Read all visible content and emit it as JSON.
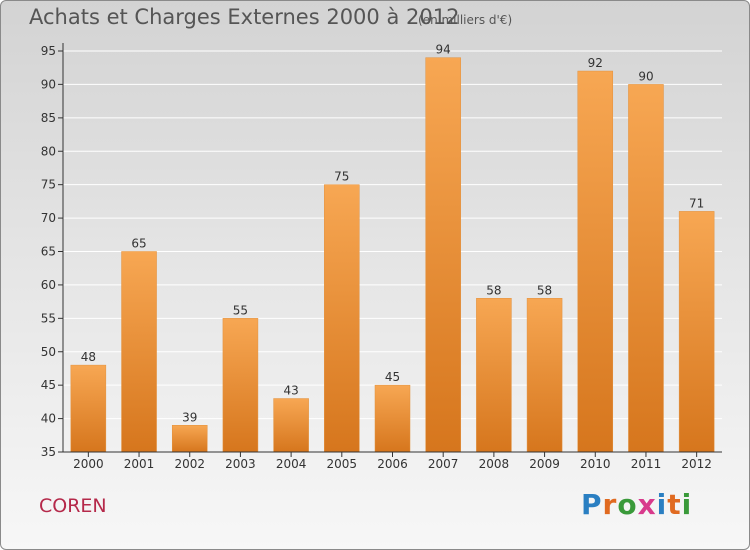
{
  "title": "Achats et Charges Externes 2000 à 2012",
  "subtitle": "(en milliers d'€)",
  "commune": "COREN",
  "logo": {
    "text": "Proxiti",
    "letters": [
      {
        "ch": "P",
        "color": "#2a7fc2"
      },
      {
        "ch": "r",
        "color": "#e06a20"
      },
      {
        "ch": "o",
        "color": "#3a9a3a"
      },
      {
        "ch": "x",
        "color": "#d83a8c"
      },
      {
        "ch": "i",
        "color": "#2a7fc2"
      },
      {
        "ch": "t",
        "color": "#e06a20"
      },
      {
        "ch": "i",
        "color": "#3a9a3a"
      }
    ]
  },
  "colors": {
    "bar_light": "#f7a753",
    "bar_dark": "#d6761d",
    "axis": "#333333",
    "grid": "#ffffff",
    "title": "#555555",
    "commune": "#b5294a"
  },
  "chart_data": {
    "type": "bar",
    "categories": [
      "2000",
      "2001",
      "2002",
      "2003",
      "2004",
      "2005",
      "2006",
      "2007",
      "2008",
      "2009",
      "2010",
      "2011",
      "2012"
    ],
    "values": [
      48,
      65,
      39,
      55,
      43,
      75,
      45,
      94,
      58,
      58,
      92,
      90,
      71
    ],
    "ylim": [
      35,
      95
    ],
    "yticks": [
      35,
      40,
      45,
      50,
      55,
      60,
      65,
      70,
      75,
      80,
      85,
      90,
      95
    ],
    "grid": true,
    "data_labels": true
  }
}
